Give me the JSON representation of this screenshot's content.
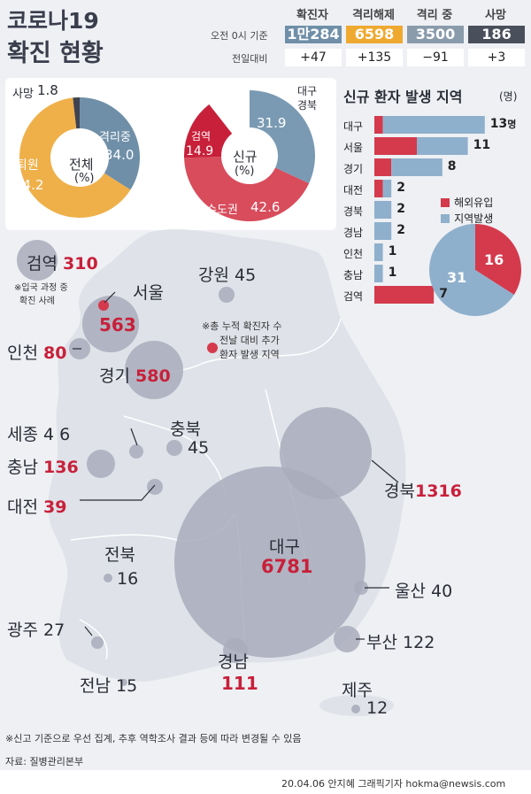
{
  "title": {
    "line1": "코로나19",
    "line2": "확진 현황"
  },
  "stats": {
    "headers": [
      "확진자",
      "격리해제",
      "격리 중",
      "사망"
    ],
    "row1_label": "오전 0시 기준",
    "row2_label": "전일대비",
    "values": [
      "1만284",
      "6598",
      "3500",
      "186"
    ],
    "changes": [
      "+47",
      "+135",
      "−91",
      "+3"
    ],
    "colors": [
      "#6f8fa8",
      "#efa930",
      "#8a9bab",
      "#4a4f5c"
    ]
  },
  "donut_total": {
    "center": "전체",
    "unit": "(%)",
    "segments": [
      {
        "label": "격리중",
        "value": "34.0",
        "num": 34.0,
        "color": "#6f8fa8"
      },
      {
        "label": "퇴원",
        "value": "64.2",
        "num": 64.2,
        "color": "#efb04a"
      },
      {
        "label": "사망",
        "value": "1.8",
        "num": 1.8,
        "color": "#3f4350"
      }
    ]
  },
  "donut_new": {
    "center": "신규",
    "unit": "(%)",
    "segments": [
      {
        "label": "대구 경북",
        "value": "31.9",
        "num": 31.9,
        "color": "#7a9ab3"
      },
      {
        "label": "수도권",
        "value": "42.6",
        "num": 42.6,
        "color": "#d84c5c"
      },
      {
        "label": "검역",
        "value": "14.9",
        "num": 14.9,
        "color": "#c8203a"
      },
      {
        "label": "",
        "value": "",
        "num": 10.6,
        "color": "#ffffff"
      }
    ]
  },
  "new_by_region": {
    "title": "신규 환자 발생 지역",
    "unit": "(명)",
    "rows": [
      {
        "region": "대구",
        "total": "13",
        "suffix": "명",
        "overseas": 1,
        "local": 12
      },
      {
        "region": "서울",
        "total": "11",
        "suffix": "",
        "overseas": 5,
        "local": 6
      },
      {
        "region": "경기",
        "total": "8",
        "suffix": "",
        "overseas": 2,
        "local": 6
      },
      {
        "region": "대전",
        "total": "2",
        "suffix": "",
        "overseas": 1,
        "local": 1
      },
      {
        "region": "경북",
        "total": "2",
        "suffix": "",
        "overseas": 0,
        "local": 2
      },
      {
        "region": "경남",
        "total": "2",
        "suffix": "",
        "overseas": 0,
        "local": 2
      },
      {
        "region": "인천",
        "total": "1",
        "suffix": "",
        "overseas": 0,
        "local": 1
      },
      {
        "region": "충남",
        "total": "1",
        "suffix": "",
        "overseas": 0,
        "local": 1
      },
      {
        "region": "검역",
        "total": "7",
        "suffix": "",
        "overseas": 7,
        "local": 0
      }
    ],
    "legend": [
      {
        "label": "해외유입",
        "color": "#d43a4c"
      },
      {
        "label": "지역발생",
        "color": "#8fb0cc"
      }
    ],
    "pie": {
      "overseas": 16,
      "local": 31,
      "overseas_label": "16",
      "local_label": "31"
    }
  },
  "map_labels": {
    "quarantine": {
      "name": "검역",
      "value": "310",
      "note1": "※입국 과정 중",
      "note2": "확진 사례"
    },
    "gangwon": {
      "name": "강원",
      "value": "45"
    },
    "seoul": {
      "name": "서울",
      "value": "563"
    },
    "incheon": {
      "name": "인천",
      "value": "80"
    },
    "gyeonggi": {
      "name": "경기",
      "value": "580"
    },
    "sejong": {
      "name": "세종",
      "value": "4",
      "value2": "6"
    },
    "chungbuk": {
      "name": "충북",
      "value": "45"
    },
    "chungnam": {
      "name": "충남",
      "value": "136"
    },
    "daejeon": {
      "name": "대전",
      "value": "39"
    },
    "gyeongbuk": {
      "name": "경북",
      "value": "1316"
    },
    "jeonbuk": {
      "name": "전북",
      "value": "16"
    },
    "daegu": {
      "name": "대구",
      "value": "6781"
    },
    "ulsan": {
      "name": "울산",
      "value": "40"
    },
    "gwangju": {
      "name": "광주",
      "value": "27"
    },
    "busan": {
      "name": "부산",
      "value": "122"
    },
    "gyeongnam": {
      "name": "경남",
      "value": "111"
    },
    "jeonnam": {
      "name": "전남",
      "value": "15"
    },
    "jeju": {
      "name": "제주",
      "value": "12"
    }
  },
  "map_legend": {
    "line1": "※총 누적 확진자 수",
    "line2": "전날 대비 추가",
    "line3": "환자 발생 지역",
    "red": "#d43a4c"
  },
  "footer": {
    "note": "※신고 기준으로 우선 집계, 추후 역학조사 결과 등에 따라 변경될 수 있음",
    "source": "자료: 질병관리본부",
    "credit": "20.04.06 안지혜 그래픽기자 hokma@newsis.com"
  }
}
